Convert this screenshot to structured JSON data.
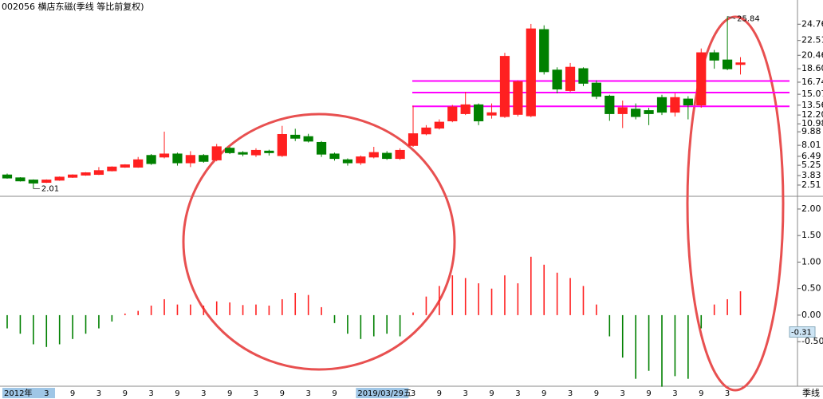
{
  "chart_data": [
    {
      "type": "candlestick",
      "title": "002056 横店东磁(季线 等比前复权)",
      "period_label": "季线",
      "categories": [
        "2012年",
        null,
        null,
        "3",
        null,
        "9",
        null,
        "3",
        null,
        "9",
        null,
        "3",
        null,
        "9",
        null,
        "3",
        null,
        "9",
        null,
        "3",
        null,
        "9",
        null,
        "3",
        null,
        "9",
        null,
        "2019/03/29五",
        null,
        null,
        null,
        "3",
        null,
        "9",
        null,
        "3",
        null,
        "9",
        null,
        "3",
        null,
        "9",
        null,
        "3",
        null,
        "9",
        null,
        "3",
        null,
        "9",
        null,
        "3",
        null,
        "9",
        null,
        "3",
        null
      ],
      "open": [
        3.9,
        3.5,
        3.2,
        2.9,
        3.2,
        3.6,
        3.9,
        4.0,
        4.5,
        5.0,
        5.0,
        6.6,
        6.4,
        6.8,
        5.6,
        6.6,
        6.0,
        7.6,
        7.0,
        6.7,
        7.2,
        6.6,
        9.4,
        9.2,
        8.4,
        6.8,
        6.0,
        5.6,
        6.4,
        6.9,
        6.2,
        8.0,
        9.6,
        10.4,
        11.4,
        12.4,
        13.6,
        12.2,
        12.0,
        12.3,
        12.1,
        24.0,
        18.4,
        15.6,
        18.6,
        16.6,
        14.8,
        12.4,
        13.0,
        12.8,
        14.6,
        12.6,
        14.4,
        13.6,
        20.8,
        19.8,
        19.2
      ],
      "high": [
        4.1,
        3.6,
        3.3,
        3.3,
        3.7,
        4.0,
        4.3,
        5.0,
        5.1,
        5.4,
        6.4,
        6.8,
        9.9,
        7.0,
        7.2,
        6.8,
        8.2,
        7.8,
        7.2,
        7.6,
        7.4,
        10.7,
        10.3,
        9.6,
        8.6,
        7.0,
        6.2,
        6.6,
        7.8,
        7.2,
        7.6,
        13.5,
        10.8,
        11.6,
        13.6,
        15.4,
        13.8,
        13.8,
        20.8,
        17.0,
        24.8,
        24.6,
        18.8,
        19.4,
        18.8,
        17.0,
        15.0,
        14.2,
        13.8,
        13.2,
        15.0,
        15.2,
        14.8,
        21.4,
        21.2,
        25.84,
        20.2
      ],
      "low": [
        3.4,
        3.0,
        2.01,
        2.8,
        3.1,
        3.5,
        3.8,
        3.9,
        4.4,
        4.9,
        4.9,
        5.3,
        6.2,
        5.2,
        5.0,
        5.6,
        5.8,
        6.8,
        6.5,
        6.4,
        6.6,
        6.4,
        8.6,
        8.4,
        6.4,
        5.9,
        5.2,
        5.3,
        6.2,
        6.0,
        6.0,
        7.8,
        9.4,
        10.2,
        11.2,
        12.2,
        10.8,
        11.7,
        11.8,
        12.0,
        11.9,
        17.8,
        15.2,
        15.4,
        16.2,
        14.4,
        11.4,
        10.4,
        11.6,
        10.8,
        12.2,
        12.0,
        11.6,
        13.2,
        18.6,
        18.4,
        17.8
      ],
      "close": [
        3.5,
        3.1,
        2.8,
        3.2,
        3.6,
        3.9,
        4.2,
        4.5,
        5.0,
        5.3,
        6.0,
        5.5,
        6.8,
        5.6,
        6.6,
        5.8,
        7.8,
        7.0,
        6.8,
        7.3,
        7.0,
        9.5,
        9.0,
        8.6,
        6.8,
        6.2,
        5.6,
        6.4,
        7.0,
        6.2,
        7.3,
        9.6,
        10.4,
        11.2,
        13.3,
        13.6,
        11.4,
        12.5,
        20.3,
        16.8,
        24.1,
        18.2,
        15.8,
        18.8,
        16.6,
        14.8,
        12.4,
        13.2,
        12.0,
        12.4,
        12.6,
        14.6,
        13.6,
        20.8,
        19.8,
        18.6,
        19.4
      ],
      "up_color": "#ff2020",
      "down_color": "#008000",
      "levels": [
        16.9,
        15.3,
        13.4
      ],
      "level_color": "#ff00ff",
      "ylim": [
        1.4,
        27.0
      ],
      "yticks": [
        24.76,
        22.51,
        20.46,
        {
          "value": 18.6,
          "label": "18.60"
        },
        16.74,
        15.07,
        13.56,
        {
          "value": 12.2,
          "label": "12.20"
        },
        10.98,
        9.88,
        8.01,
        6.49,
        5.25,
        3.83,
        2.51
      ]
    },
    {
      "type": "bar",
      "values": [
        -0.25,
        -0.35,
        -0.55,
        -0.6,
        -0.55,
        -0.45,
        -0.35,
        -0.25,
        -0.12,
        0.03,
        0.08,
        0.18,
        0.3,
        0.2,
        0.2,
        0.18,
        0.26,
        0.24,
        0.19,
        0.2,
        0.18,
        0.3,
        0.42,
        0.38,
        0.15,
        -0.15,
        -0.35,
        -0.45,
        -0.4,
        -0.35,
        -0.4,
        0.05,
        0.35,
        0.55,
        0.75,
        0.7,
        0.6,
        0.5,
        0.75,
        0.6,
        1.1,
        0.95,
        0.8,
        0.7,
        0.55,
        0.2,
        -0.4,
        -0.8,
        -1.2,
        -1.05,
        -1.35,
        -1.15,
        -1.2,
        -0.25,
        0.2,
        0.3,
        0.45
      ],
      "cursor_value": -0.31,
      "up_color": "#ff2020",
      "down_color": "#008000",
      "ylim": [
        -1.34,
        2.33
      ],
      "yticks": [
        {
          "value": 2,
          "label": "2.00"
        },
        {
          "value": 1.5,
          "label": "1.50"
        },
        {
          "value": 1,
          "label": "1.00"
        },
        {
          "value": 0.5,
          "label": "0.50"
        },
        {
          "value": 0,
          "label": "0.00"
        },
        {
          "value": -0.5,
          "label": "-0.50"
        }
      ]
    }
  ]
}
